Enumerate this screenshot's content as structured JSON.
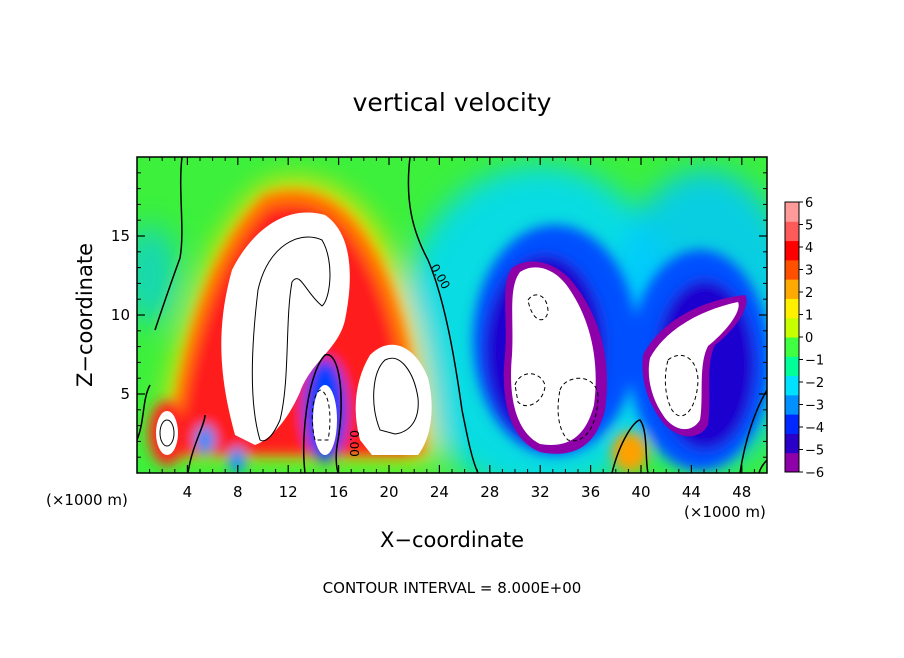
{
  "chart_data": {
    "type": "heatmap",
    "title": "vertical velocity",
    "xlabel": "X−coordinate",
    "ylabel": "Z−coordinate",
    "x_unit_left": "(×1000 m)",
    "x_unit_right": "(×1000 m)",
    "xlim": [
      0,
      50
    ],
    "ylim": [
      0,
      20
    ],
    "x_ticks": [
      4,
      8,
      12,
      16,
      20,
      24,
      28,
      32,
      36,
      40,
      44,
      48
    ],
    "y_ticks": [
      5,
      10,
      15
    ],
    "colorbar": {
      "ticks": [
        6,
        5,
        4,
        3,
        2,
        1,
        0,
        -1,
        -2,
        -3,
        -4,
        -5,
        -6
      ],
      "tick_labels": [
        "6",
        "5",
        "4",
        "3",
        "2",
        "1",
        "0",
        "−1",
        "−2",
        "−3",
        "−4",
        "−5",
        "−6"
      ],
      "range": [
        -6,
        6
      ],
      "colors": [
        "#8e00a8",
        "#2a00c8",
        "#0028ff",
        "#0090ff",
        "#00e0ff",
        "#00ff98",
        "#40ff40",
        "#c8ff00",
        "#fff000",
        "#ffaa00",
        "#ff5000",
        "#ff0000",
        "#ff5a5a",
        "#ff9a9a"
      ]
    },
    "contour_labels": [
      "0.00",
      "0.00"
    ],
    "contour_interval_text": "CONTOUR INTERVAL = 8.000E+00",
    "features": [
      {
        "kind": "updraft",
        "x": 13,
        "z": 11,
        "peak": 6,
        "note": "main updraft core"
      },
      {
        "kind": "updraft",
        "x": 19.5,
        "z": 5,
        "peak": 6
      },
      {
        "kind": "updraft",
        "x": 2.5,
        "z": 3,
        "peak": 6
      },
      {
        "kind": "downdraft",
        "x": 15.5,
        "z": 3.5,
        "peak": -6
      },
      {
        "kind": "downdraft",
        "x": 33,
        "z": 8,
        "peak": -6
      },
      {
        "kind": "downdraft",
        "x": 44,
        "z": 6,
        "peak": -6
      }
    ]
  }
}
